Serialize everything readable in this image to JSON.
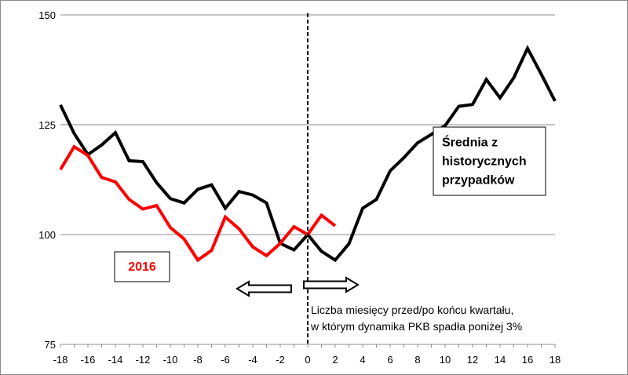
{
  "chart_data": {
    "type": "line",
    "xlim": [
      -18,
      18
    ],
    "ylim": [
      75,
      150
    ],
    "x_ticks": [
      "-18",
      "-16",
      "-14",
      "-12",
      "-10",
      "-8",
      "-6",
      "-4",
      "-2",
      "0",
      "2",
      "4",
      "6",
      "8",
      "10",
      "12",
      "14",
      "16",
      "18"
    ],
    "y_ticks": [
      "75",
      "100",
      "125",
      "150"
    ],
    "grid": "horizontal",
    "series": [
      {
        "name": "Średnia z historycznych przypadków",
        "color": "#000000",
        "x": [
          -18,
          -17,
          -16,
          -15,
          -14,
          -13,
          -12,
          -11,
          -10,
          -9,
          -8,
          -7,
          -6,
          -5,
          -4,
          -3,
          -2,
          -1,
          0,
          1,
          2,
          3,
          4,
          5,
          6,
          7,
          8,
          9,
          10,
          11,
          12,
          13,
          14,
          15,
          16,
          17,
          18
        ],
        "y": [
          129.5,
          123,
          118.2,
          120.4,
          123.2,
          116.8,
          116.6,
          111.8,
          108.2,
          107.2,
          110.3,
          111.3,
          106.0,
          109.8,
          109.0,
          107.2,
          98.0,
          96.5,
          100.0,
          96.2,
          94.2,
          97.9,
          106.0,
          108.0,
          114.5,
          117.5,
          120.9,
          122.8,
          124.8,
          129.2,
          129.6,
          135.3,
          131.1,
          135.7,
          142.4,
          136.5,
          130.4
        ]
      },
      {
        "name": "2016",
        "color": "#ff0000",
        "x": [
          -18,
          -17,
          -16,
          -15,
          -14,
          -13,
          -12,
          -11,
          -10,
          -9,
          -8,
          -7,
          -6,
          -5,
          -4,
          -3,
          -2,
          -1,
          0,
          1,
          2
        ],
        "y": [
          114.8,
          120.0,
          118.0,
          113.0,
          112.0,
          108.0,
          105.8,
          106.6,
          101.6,
          99.0,
          94.2,
          96.4,
          104.0,
          101.3,
          97.2,
          95.2,
          98.0,
          101.8,
          100.0,
          104.4,
          102.0
        ]
      }
    ],
    "legend_boxes": [
      {
        "label": "Średnia z historycznych przypadków",
        "lines": [
          "Średnia z",
          "historycznych",
          "przypadków"
        ],
        "color": "#000000"
      },
      {
        "label": "2016",
        "lines": [
          "2016"
        ],
        "color": "#ff0000"
      }
    ],
    "annotations": [
      "Liczba miesięcy przed/po końcu kwartału,",
      "w którym dynamika PKB spadła poniżej 3%"
    ],
    "vertical_marker_x": 0
  }
}
